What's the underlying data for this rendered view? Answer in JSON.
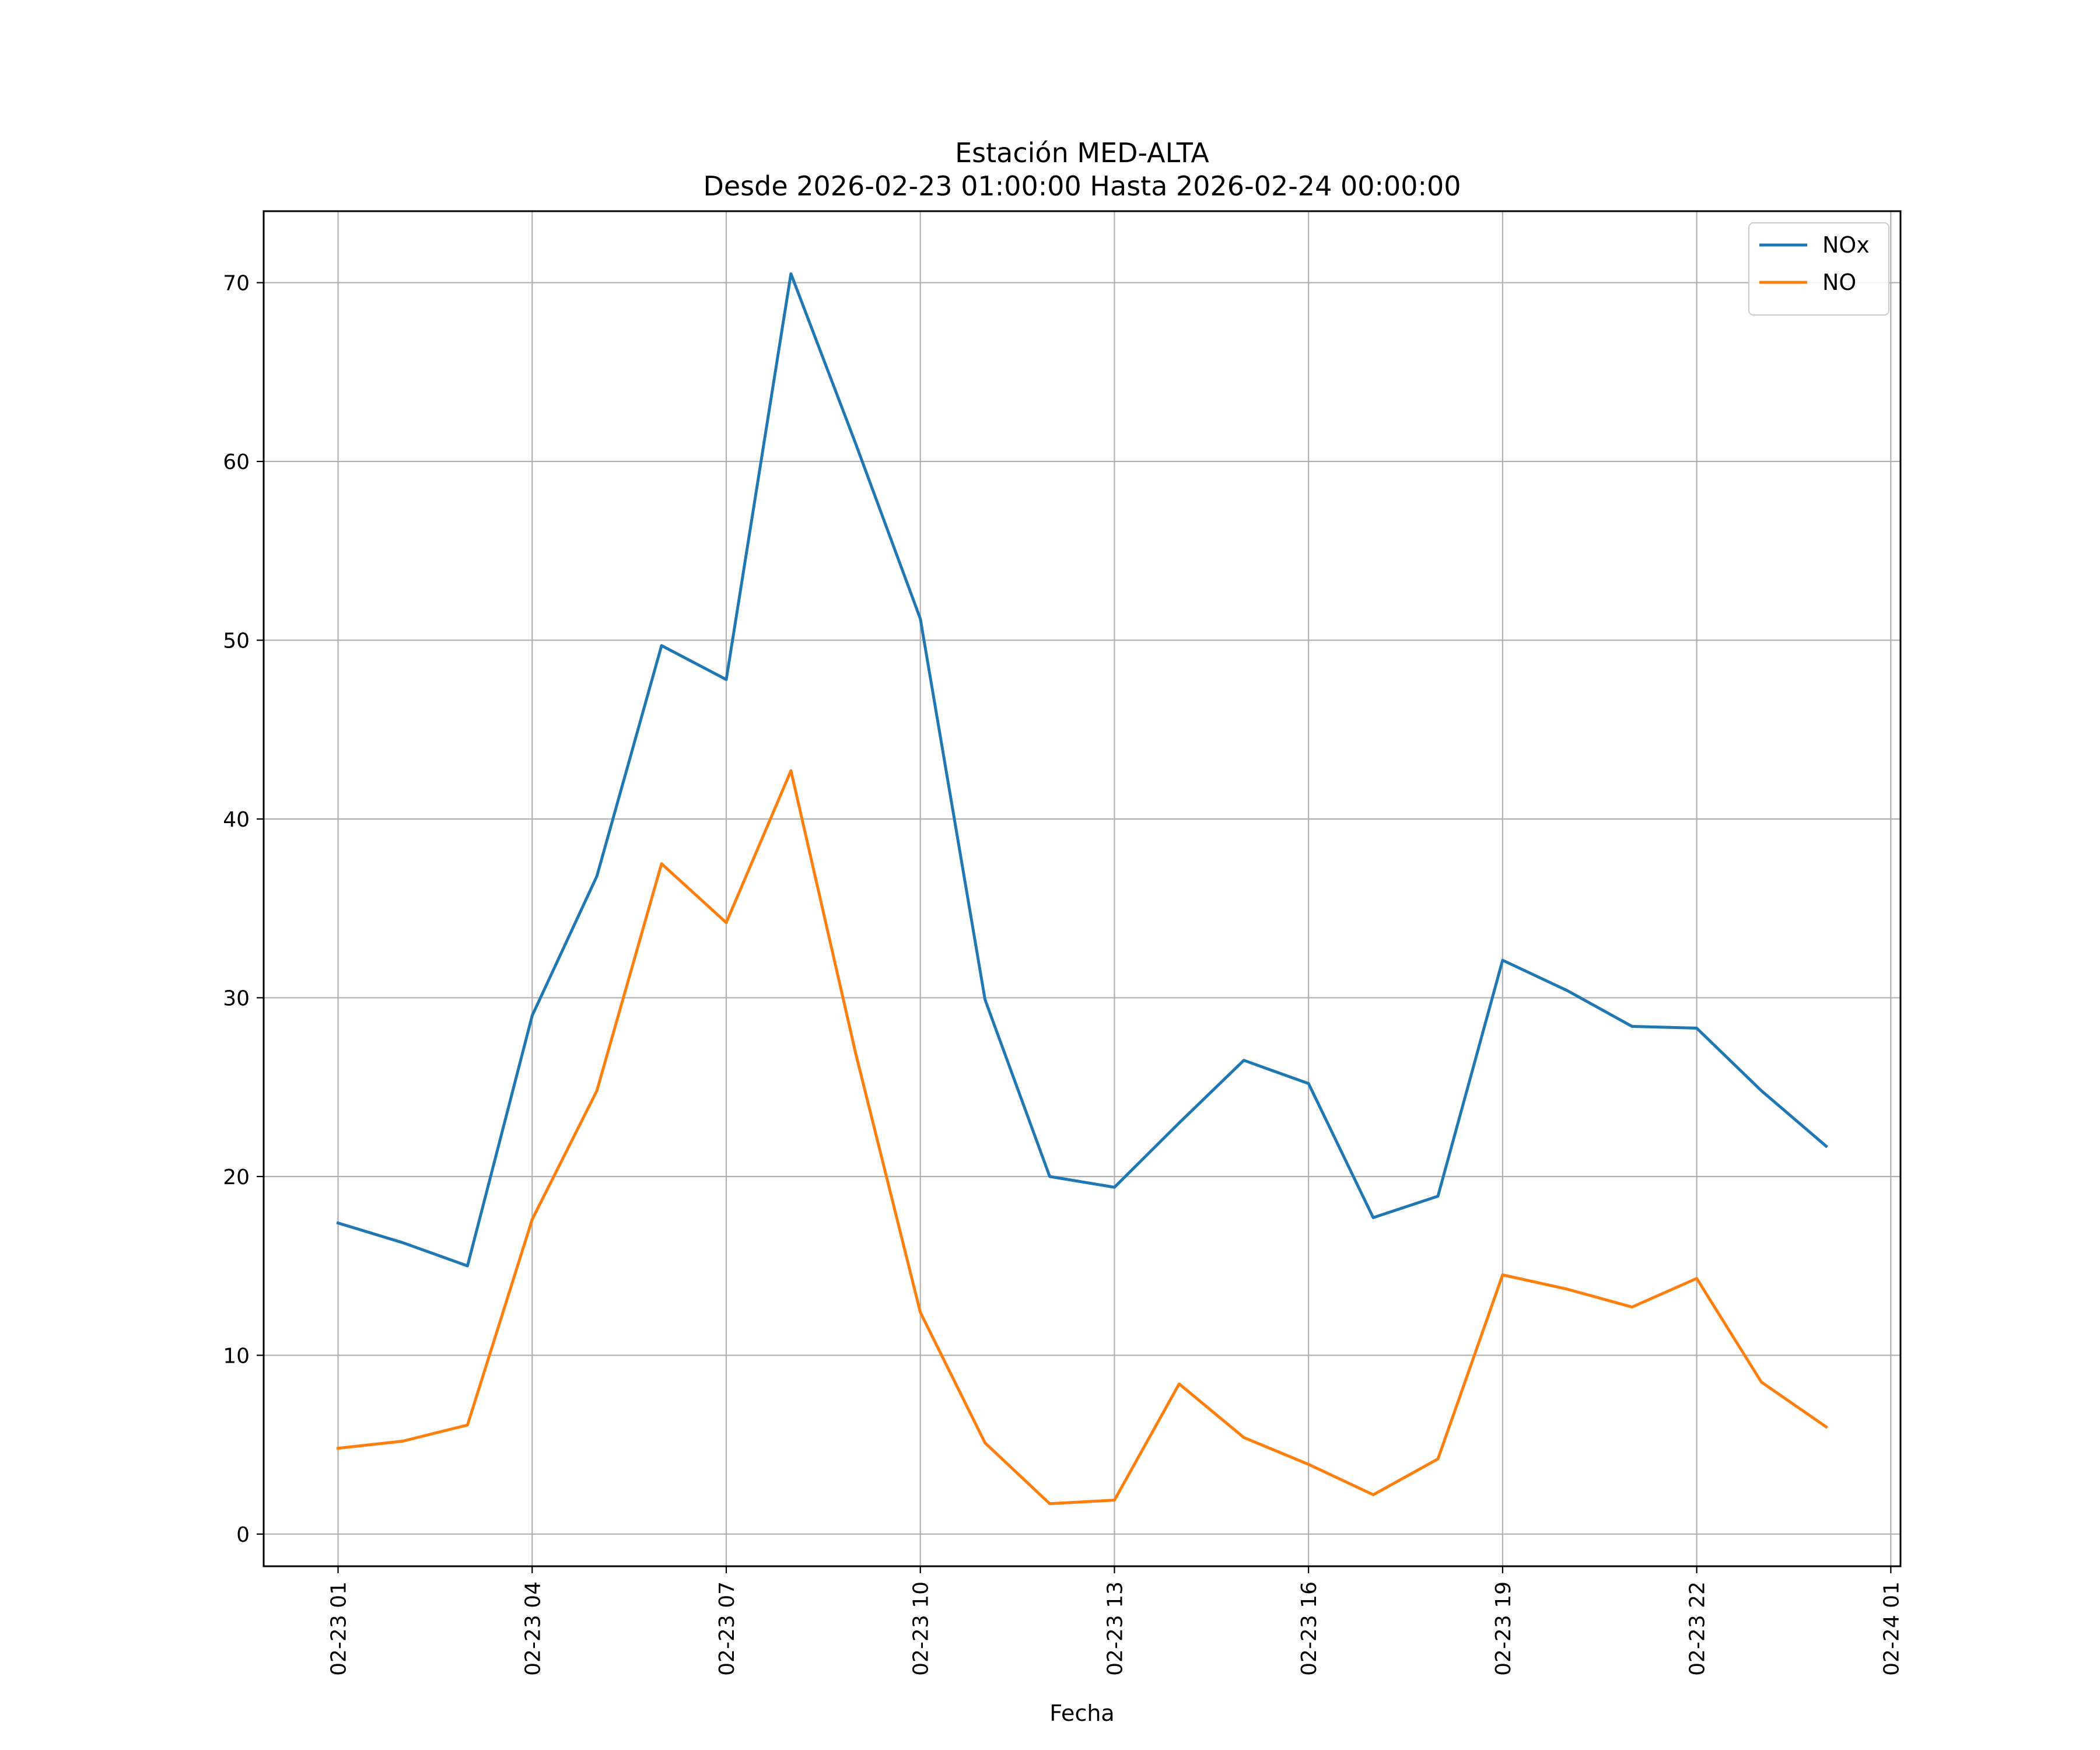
{
  "chart_data": {
    "type": "line",
    "title": "Estación MED-ALTA",
    "subtitle": "Desde 2026-02-23 01:00:00 Hasta 2026-02-24 00:00:00",
    "xlabel": "Fecha",
    "ylabel": "",
    "x": [
      "2026-02-23 01:00",
      "2026-02-23 02:00",
      "2026-02-23 03:00",
      "2026-02-23 04:00",
      "2026-02-23 05:00",
      "2026-02-23 06:00",
      "2026-02-23 07:00",
      "2026-02-23 08:00",
      "2026-02-23 09:00",
      "2026-02-23 10:00",
      "2026-02-23 11:00",
      "2026-02-23 12:00",
      "2026-02-23 13:00",
      "2026-02-23 14:00",
      "2026-02-23 15:00",
      "2026-02-23 16:00",
      "2026-02-23 17:00",
      "2026-02-23 18:00",
      "2026-02-23 19:00",
      "2026-02-23 20:00",
      "2026-02-23 21:00",
      "2026-02-23 22:00",
      "2026-02-23 23:00",
      "2026-02-24 00:00"
    ],
    "xlim": [
      "2026-02-22 23:51",
      "2026-02-24 01:09"
    ],
    "xticks": [
      "02-23 01",
      "02-23 04",
      "02-23 07",
      "02-23 10",
      "02-23 13",
      "02-23 16",
      "02-23 19",
      "02-23 22",
      "02-24 01"
    ],
    "ylim": [
      -1.8,
      74
    ],
    "yticks": [
      0,
      10,
      20,
      30,
      40,
      50,
      60,
      70
    ],
    "grid": true,
    "legend_position": "top-right",
    "series": [
      {
        "name": "NOx",
        "color": "#1f77b4",
        "values": [
          17.4,
          16.3,
          15.0,
          29.0,
          36.8,
          49.7,
          47.8,
          70.5,
          61.0,
          51.2,
          29.9,
          20.0,
          19.4,
          23.0,
          26.5,
          25.2,
          17.7,
          18.9,
          32.1,
          30.4,
          28.4,
          28.3,
          24.8,
          21.7
        ]
      },
      {
        "name": "NO",
        "color": "#ff7f0e",
        "values": [
          4.8,
          5.2,
          6.1,
          17.6,
          24.8,
          37.5,
          34.2,
          42.7,
          26.9,
          12.4,
          5.1,
          1.7,
          1.9,
          8.4,
          5.4,
          3.9,
          2.2,
          4.2,
          14.5,
          13.7,
          12.7,
          14.3,
          8.5,
          6.0
        ]
      }
    ]
  }
}
